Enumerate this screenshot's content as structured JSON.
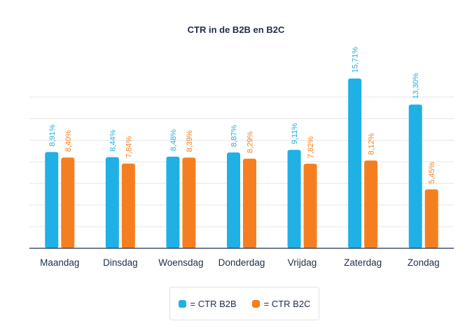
{
  "chart_data": {
    "type": "bar",
    "title": "CTR in de B2B en B2C",
    "categories": [
      "Maandag",
      "Dinsdag",
      "Woensdag",
      "Donderdag",
      "Vrijdag",
      "Zaterdag",
      "Zondag"
    ],
    "series": [
      {
        "name": "= CTR B2B",
        "color": "#1fb0e6",
        "values": [
          8.91,
          8.44,
          8.48,
          8.87,
          9.11,
          15.71,
          13.3
        ],
        "labels": [
          "8,91%",
          "8,44%",
          "8,48%",
          "8,87%",
          "9,11%",
          "15,71%",
          "13,30%"
        ]
      },
      {
        "name": "= CTR B2C",
        "color": "#f57f20",
        "values": [
          8.4,
          7.84,
          8.39,
          8.29,
          7.82,
          8.12,
          5.45
        ],
        "labels": [
          "8,40%",
          "7,84%",
          "8,39%",
          "8,29%",
          "7,82%",
          "8,12%",
          "5,45%"
        ]
      }
    ],
    "ylim": [
      0,
      18
    ],
    "grid": true,
    "legend": "bottom-center",
    "axis_color": "#1f2d4a",
    "grid_color": "#e6e6e6"
  }
}
